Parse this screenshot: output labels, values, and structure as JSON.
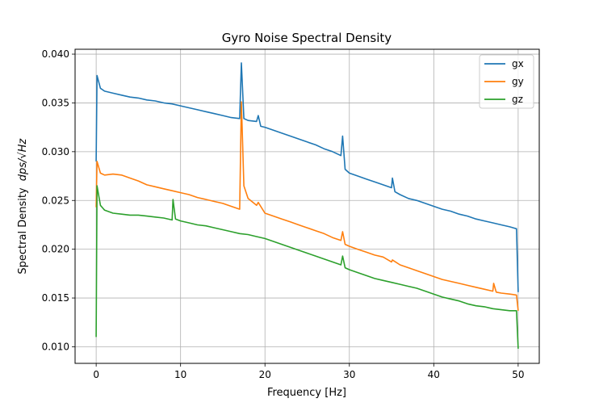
{
  "chart_data": {
    "type": "line",
    "title": "Gyro Noise Spectral Density",
    "xlabel": "Frequency [Hz]",
    "ylabel_prefix": "Spectral Density",
    "ylabel_units": "dps/√Hz",
    "xlim": [
      -2.5,
      52.5
    ],
    "ylim": [
      0.0083,
      0.0405
    ],
    "grid": true,
    "legend_position": "upper right",
    "x_ticks": [
      0,
      10,
      20,
      30,
      40,
      50
    ],
    "x_tick_labels": [
      "0",
      "10",
      "20",
      "30",
      "40",
      "50"
    ],
    "y_ticks": [
      0.01,
      0.015,
      0.02,
      0.025,
      0.03,
      0.035,
      0.04
    ],
    "y_tick_labels": [
      "0.010",
      "0.015",
      "0.020",
      "0.025",
      "0.030",
      "0.035",
      "0.040"
    ],
    "series": [
      {
        "name": "gx",
        "color": "#1f77b4",
        "points": [
          [
            0,
            0.029
          ],
          [
            0.1,
            0.0378
          ],
          [
            0.5,
            0.0365
          ],
          [
            1,
            0.0362
          ],
          [
            2,
            0.036
          ],
          [
            3,
            0.0358
          ],
          [
            4,
            0.0356
          ],
          [
            5,
            0.0355
          ],
          [
            6,
            0.0353
          ],
          [
            7,
            0.0352
          ],
          [
            8,
            0.035
          ],
          [
            9,
            0.0349
          ],
          [
            10,
            0.0347
          ],
          [
            11,
            0.0345
          ],
          [
            12,
            0.0343
          ],
          [
            13,
            0.0341
          ],
          [
            14,
            0.0339
          ],
          [
            15,
            0.0337
          ],
          [
            16,
            0.0335
          ],
          [
            17,
            0.0334
          ],
          [
            17.2,
            0.0391
          ],
          [
            17.5,
            0.0334
          ],
          [
            18,
            0.0332
          ],
          [
            19,
            0.0331
          ],
          [
            19.2,
            0.0337
          ],
          [
            19.5,
            0.0326
          ],
          [
            20,
            0.0325
          ],
          [
            21,
            0.0322
          ],
          [
            22,
            0.0319
          ],
          [
            23,
            0.0316
          ],
          [
            24,
            0.0313
          ],
          [
            25,
            0.031
          ],
          [
            26,
            0.0307
          ],
          [
            27,
            0.0303
          ],
          [
            28,
            0.03
          ],
          [
            29,
            0.0296
          ],
          [
            29.2,
            0.0316
          ],
          [
            29.5,
            0.0282
          ],
          [
            30,
            0.0278
          ],
          [
            31,
            0.0275
          ],
          [
            32,
            0.0272
          ],
          [
            33,
            0.0269
          ],
          [
            34,
            0.0266
          ],
          [
            35,
            0.0263
          ],
          [
            35.1,
            0.0273
          ],
          [
            35.4,
            0.0259
          ],
          [
            36,
            0.0256
          ],
          [
            37,
            0.0252
          ],
          [
            38,
            0.025
          ],
          [
            39,
            0.0247
          ],
          [
            40,
            0.0244
          ],
          [
            41,
            0.0241
          ],
          [
            42,
            0.0239
          ],
          [
            43,
            0.0236
          ],
          [
            44,
            0.0234
          ],
          [
            45,
            0.0231
          ],
          [
            46,
            0.0229
          ],
          [
            47,
            0.0227
          ],
          [
            48,
            0.0225
          ],
          [
            49,
            0.0223
          ],
          [
            49.8,
            0.0221
          ],
          [
            50,
            0.0156
          ]
        ]
      },
      {
        "name": "gy",
        "color": "#ff7f0e",
        "points": [
          [
            0,
            0.0243
          ],
          [
            0.1,
            0.029
          ],
          [
            0.5,
            0.0278
          ],
          [
            1,
            0.0276
          ],
          [
            2,
            0.0277
          ],
          [
            3,
            0.0276
          ],
          [
            4,
            0.0273
          ],
          [
            5,
            0.027
          ],
          [
            6,
            0.0266
          ],
          [
            7,
            0.0264
          ],
          [
            8,
            0.0262
          ],
          [
            9,
            0.026
          ],
          [
            10,
            0.0258
          ],
          [
            11,
            0.0256
          ],
          [
            12,
            0.0253
          ],
          [
            13,
            0.0251
          ],
          [
            14,
            0.0249
          ],
          [
            15,
            0.0247
          ],
          [
            16,
            0.0244
          ],
          [
            17,
            0.0241
          ],
          [
            17.2,
            0.0351
          ],
          [
            17.5,
            0.0265
          ],
          [
            18,
            0.0252
          ],
          [
            19,
            0.0245
          ],
          [
            19.2,
            0.0248
          ],
          [
            20,
            0.0237
          ],
          [
            21,
            0.0234
          ],
          [
            22,
            0.0231
          ],
          [
            23,
            0.0228
          ],
          [
            24,
            0.0225
          ],
          [
            25,
            0.0222
          ],
          [
            26,
            0.0219
          ],
          [
            27,
            0.0216
          ],
          [
            28,
            0.0212
          ],
          [
            29,
            0.0209
          ],
          [
            29.2,
            0.0218
          ],
          [
            29.5,
            0.0205
          ],
          [
            30,
            0.0203
          ],
          [
            31,
            0.02
          ],
          [
            32,
            0.0197
          ],
          [
            33,
            0.0194
          ],
          [
            34,
            0.0192
          ],
          [
            35,
            0.0187
          ],
          [
            35.1,
            0.0189
          ],
          [
            36,
            0.0184
          ],
          [
            37,
            0.0181
          ],
          [
            38,
            0.0178
          ],
          [
            39,
            0.0175
          ],
          [
            40,
            0.0172
          ],
          [
            41,
            0.0169
          ],
          [
            42,
            0.0167
          ],
          [
            43,
            0.0165
          ],
          [
            44,
            0.0163
          ],
          [
            45,
            0.0161
          ],
          [
            46,
            0.0159
          ],
          [
            47,
            0.0157
          ],
          [
            47.1,
            0.0165
          ],
          [
            47.4,
            0.0156
          ],
          [
            48,
            0.0155
          ],
          [
            49,
            0.0154
          ],
          [
            49.8,
            0.0153
          ],
          [
            50,
            0.0137
          ]
        ]
      },
      {
        "name": "gz",
        "color": "#2ca02c",
        "points": [
          [
            0,
            0.011
          ],
          [
            0.1,
            0.0265
          ],
          [
            0.5,
            0.0245
          ],
          [
            1,
            0.024
          ],
          [
            2,
            0.0237
          ],
          [
            3,
            0.0236
          ],
          [
            4,
            0.0235
          ],
          [
            5,
            0.0235
          ],
          [
            6,
            0.0234
          ],
          [
            7,
            0.0233
          ],
          [
            8,
            0.0232
          ],
          [
            9,
            0.023
          ],
          [
            9.1,
            0.0251
          ],
          [
            9.4,
            0.0231
          ],
          [
            10,
            0.0229
          ],
          [
            11,
            0.0227
          ],
          [
            12,
            0.0225
          ],
          [
            13,
            0.0224
          ],
          [
            14,
            0.0222
          ],
          [
            15,
            0.022
          ],
          [
            16,
            0.0218
          ],
          [
            17,
            0.0216
          ],
          [
            18,
            0.0215
          ],
          [
            19,
            0.0213
          ],
          [
            20,
            0.0211
          ],
          [
            21,
            0.0208
          ],
          [
            22,
            0.0205
          ],
          [
            23,
            0.0202
          ],
          [
            24,
            0.0199
          ],
          [
            25,
            0.0196
          ],
          [
            26,
            0.0193
          ],
          [
            27,
            0.019
          ],
          [
            28,
            0.0187
          ],
          [
            29,
            0.0184
          ],
          [
            29.2,
            0.0193
          ],
          [
            29.5,
            0.0181
          ],
          [
            30,
            0.0179
          ],
          [
            31,
            0.0176
          ],
          [
            32,
            0.0173
          ],
          [
            33,
            0.017
          ],
          [
            34,
            0.0168
          ],
          [
            35,
            0.0166
          ],
          [
            36,
            0.0164
          ],
          [
            37,
            0.0162
          ],
          [
            38,
            0.016
          ],
          [
            39,
            0.0157
          ],
          [
            40,
            0.0154
          ],
          [
            41,
            0.0151
          ],
          [
            42,
            0.0149
          ],
          [
            43,
            0.0147
          ],
          [
            44,
            0.0144
          ],
          [
            45,
            0.0142
          ],
          [
            46,
            0.0141
          ],
          [
            47,
            0.0139
          ],
          [
            48,
            0.0138
          ],
          [
            49,
            0.0137
          ],
          [
            49.8,
            0.0137
          ],
          [
            50,
            0.0098
          ]
        ]
      }
    ]
  }
}
